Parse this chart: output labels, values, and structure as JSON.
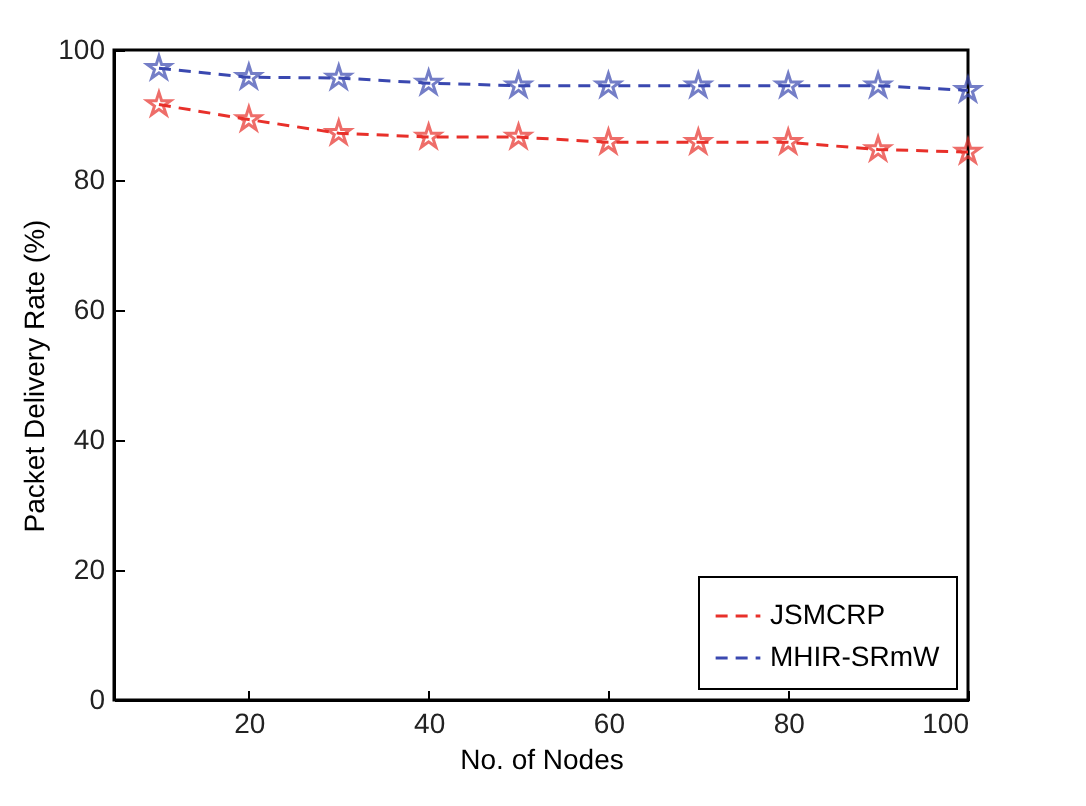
{
  "chart_data": {
    "type": "line",
    "xlabel": "No. of Nodes",
    "ylabel": "Packet Delivery Rate (%)",
    "x": [
      10,
      20,
      30,
      40,
      50,
      60,
      70,
      80,
      90,
      100
    ],
    "series": [
      {
        "name": "JSMCRP",
        "color": "#e8302a",
        "values": [
          91.6,
          89.3,
          87.2,
          86.6,
          86.6,
          85.8,
          85.8,
          85.8,
          84.7,
          84.3
        ]
      },
      {
        "name": "MHIR-SRmW",
        "color": "#3a48b0",
        "values": [
          97.2,
          95.8,
          95.7,
          94.9,
          94.5,
          94.5,
          94.5,
          94.5,
          94.5,
          93.8
        ]
      }
    ],
    "xlim": [
      5,
      100
    ],
    "xticks": [
      20,
      40,
      60,
      80,
      100
    ],
    "ylim": [
      0,
      100
    ],
    "yticks": [
      0,
      20,
      40,
      60,
      80,
      100
    ],
    "grid": false,
    "legend": "bottom right",
    "marker": "star",
    "line_style": "dashed"
  }
}
